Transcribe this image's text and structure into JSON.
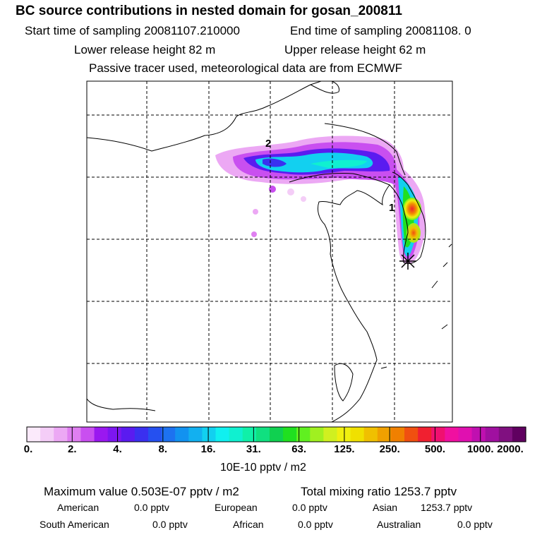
{
  "header": {
    "title": "BC  source contributions in nested domain for gosan_200811",
    "start_sampling": "Start time of sampling 20081107.210000",
    "end_sampling": "End time of sampling 20081108.     0",
    "lower_release": "Lower release height   82 m",
    "upper_release": "Upper release height   62 m",
    "tracer_note": "Passive tracer used, meteorological data are from ECMWF"
  },
  "map": {
    "labels": {
      "marker_1": "1",
      "marker_2": "2"
    },
    "receptor_symbol": "asterisk"
  },
  "colorbar": {
    "ticks": [
      "0.",
      "2.",
      "4.",
      "8.",
      "16.",
      "31.",
      "63.",
      "125.",
      "250.",
      "500.",
      "1000.",
      "2000."
    ],
    "units": "10E-10 pptv / m2",
    "colors": [
      "#fbeafb",
      "#f4cdf7",
      "#eca8f4",
      "#df7ff0",
      "#c94ff0",
      "#9a18f0",
      "#7d16f0",
      "#5a1bf0",
      "#3a30f0",
      "#2550f0",
      "#1d72f0",
      "#1292f0",
      "#12b0f0",
      "#12d0f0",
      "#10f0f0",
      "#10f0d0",
      "#10f0a8",
      "#10e080",
      "#10d050",
      "#20e020",
      "#60f020",
      "#a0f020",
      "#d0f020",
      "#f0f010",
      "#f0e000",
      "#f0c000",
      "#f0a000",
      "#f08000",
      "#f05010",
      "#f02030",
      "#f01070",
      "#f010a0",
      "#e010b0",
      "#c010b0",
      "#a010a0",
      "#801080",
      "#600060"
    ]
  },
  "summary": {
    "max_value": "Maximum value  0.503E-07 pptv / m2",
    "total_mixing": "Total mixing ratio     1253.7 pptv",
    "american_label": "American",
    "american_value": "0.0 pptv",
    "european_label": "European",
    "european_value": "0.0 pptv",
    "asian_label": "Asian",
    "asian_value": "1253.7 pptv",
    "south_american_label": "South American",
    "south_american_value": "0.0 pptv",
    "african_label": "African",
    "african_value": "0.0 pptv",
    "australian_label": "Australian",
    "australian_value": "0.0 pptv"
  }
}
